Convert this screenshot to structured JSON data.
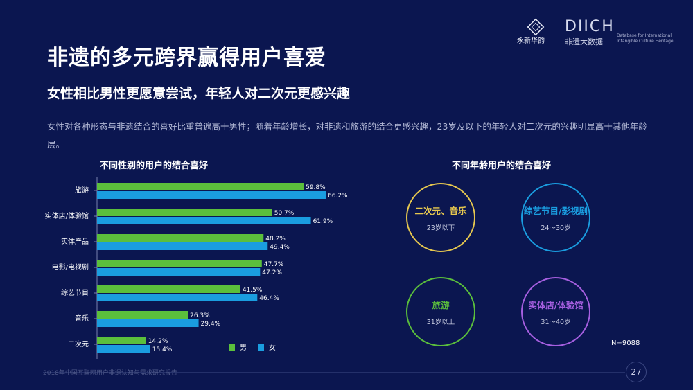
{
  "header": {
    "title": "非遗的多元跨界赢得用户喜爱",
    "subtitle": "女性相比男性更愿意尝试，年轻人对二次元更感兴趣",
    "description": "女性对各种形态与非遗结合的喜好比重普遍高于男性；随着年龄增长，对非遗和旅游的结合更感兴趣，23岁及以下的年轻人对二次元的兴趣明显高于其他年龄层。"
  },
  "logo": {
    "seal_text": "永新华韵",
    "brand": "DIICH",
    "brand_sub": "非遗大数据",
    "brand_en": "Database for International Intangible Culture Heritage"
  },
  "chart_data": [
    {
      "type": "bar",
      "orientation": "horizontal",
      "title": "不同性别的用户的结合喜好",
      "categories": [
        "旅游",
        "实体店/体验馆",
        "实体产品",
        "电影/电视剧",
        "综艺节目",
        "音乐",
        "二次元"
      ],
      "series": [
        {
          "name": "男",
          "color": "#5bbf3c",
          "values": [
            59.8,
            50.7,
            48.2,
            47.7,
            41.5,
            26.3,
            14.2
          ]
        },
        {
          "name": "女",
          "color": "#1a9de0",
          "values": [
            66.2,
            61.9,
            49.4,
            47.2,
            46.4,
            29.4,
            15.4
          ]
        }
      ],
      "unit": "%",
      "xlim": [
        0,
        70
      ],
      "legend_position": "bottom-right"
    },
    {
      "type": "table",
      "title": "不同年龄用户的结合喜好",
      "items": [
        {
          "label": "二次元、音乐",
          "age": "23岁以下",
          "color": "#e7c84f"
        },
        {
          "label": "综艺节目/影视剧",
          "age": "24～30岁",
          "color": "#1a9de0"
        },
        {
          "label": "旅游",
          "age": "31岁以上",
          "color": "#5bbf3c"
        },
        {
          "label": "实体店/体验馆",
          "age": "31～40岁",
          "color": "#a65fe0"
        }
      ]
    }
  ],
  "note": "N=9088",
  "footer": {
    "source": "2018年中国互联网用户非遗认知与需求研究报告",
    "page": "27"
  }
}
